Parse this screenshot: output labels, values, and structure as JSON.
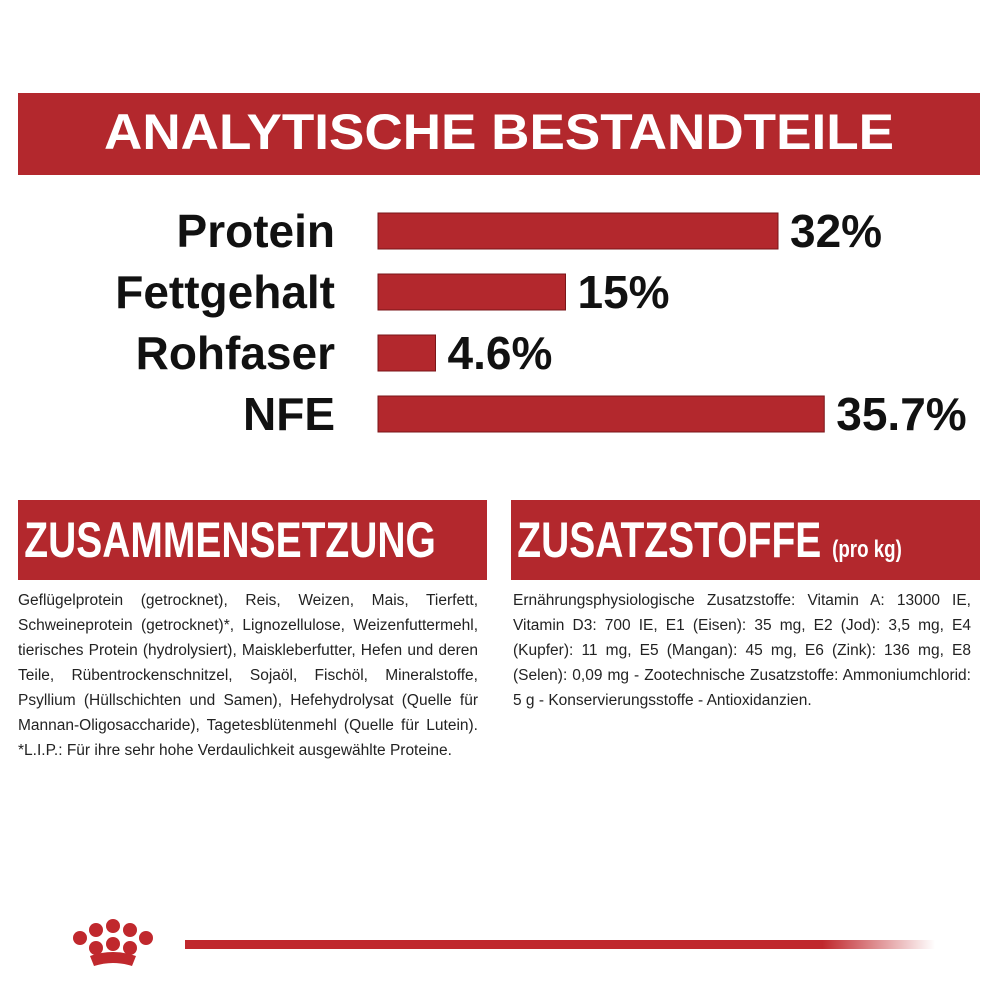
{
  "chart_data": {
    "type": "bar",
    "orientation": "horizontal",
    "title": "ANALYTISCHE BESTANDTEILE",
    "categories": [
      "Protein",
      "Fettgehalt",
      "Rohfaser",
      "NFE"
    ],
    "values": [
      32,
      15,
      4.6,
      35.7
    ],
    "value_labels": [
      "32%",
      "15%",
      "4.6%",
      "35.7%"
    ],
    "color": "#b3282d"
  },
  "composition": {
    "title": "ZUSAMMENSETZUNG",
    "text": "Geflügelprotein (getrocknet), Reis, Weizen, Mais, Tierfett, Schweineprotein (getrocknet)*, Lignozellulose, Weizenfuttermehl, tierisches Protein (hydrolysiert), Maiskleberfutter, Hefen und deren Teile, Rübentrockenschnitzel, Sojaöl, Fischöl, Mineralstoffe, Psyllium (Hüllschichten und Samen), Hefehydrolysat (Quelle für Mannan-Oligosaccharide), Tagetesblütenmehl (Quelle für Lutein). *L.I.P.: Für ihre sehr hohe Verdaulichkeit ausgewählte Proteine."
  },
  "additives": {
    "title": "ZUSATZSTOFFE",
    "title_suffix": "(pro kg)",
    "text": "Ernährungsphysiologische Zusatzstoffe: Vitamin A: 13000 IE, Vitamin D3: 700 IE, E1 (Eisen): 35 mg, E2 (Jod): 3,5 mg, E4 (Kupfer): 11 mg, E5 (Mangan): 45 mg, E6 (Zink): 136 mg, E8 (Selen): 0,09 mg - Zootechnische Zusatzstoffe: Ammoniumchlorid: 5 g - Konservierungsstoffe - Antioxidanzien."
  }
}
